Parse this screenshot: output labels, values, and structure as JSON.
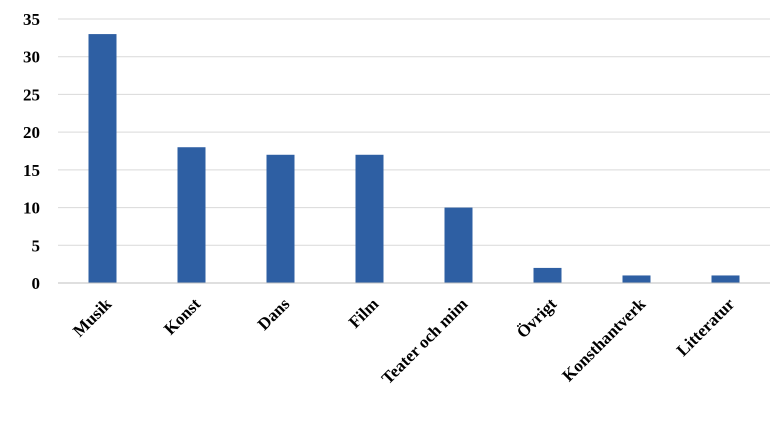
{
  "chart_data": {
    "type": "bar",
    "categories": [
      "Musik",
      "Konst",
      "Dans",
      "Film",
      "Teater och mim",
      "Övrigt",
      "Konsthantverk",
      "Litteratur"
    ],
    "values": [
      33,
      18,
      17,
      17,
      10,
      2,
      1,
      1
    ],
    "yticks": [
      "0",
      "5",
      "10",
      "15",
      "20",
      "25",
      "30",
      "35"
    ],
    "ylim": [
      0,
      35
    ],
    "grid": true,
    "bar_color": "#2e5fa3",
    "grid_color": "#d9d9d9",
    "title": "",
    "xlabel": "",
    "ylabel": ""
  }
}
